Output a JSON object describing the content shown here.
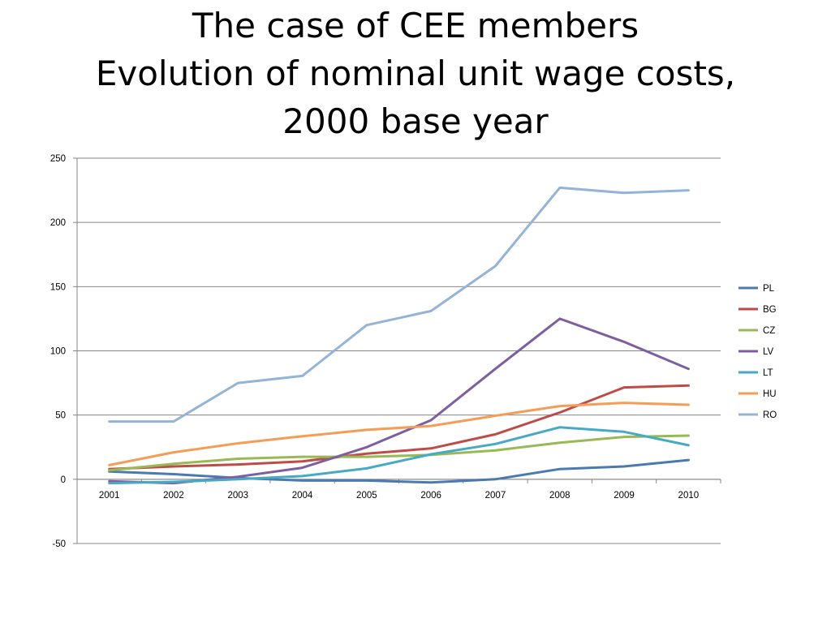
{
  "title": {
    "line1": "The case of CEE members",
    "line2": "Evolution of nominal unit wage costs,",
    "line3": "2000 base year"
  },
  "chart_data": {
    "type": "line",
    "title": "The case of CEE members Evolution of nominal unit wage costs, 2000 base year",
    "xlabel": "",
    "ylabel": "",
    "categories": [
      "2001",
      "2002",
      "2003",
      "2004",
      "2005",
      "2006",
      "2007",
      "2008",
      "2009",
      "2010"
    ],
    "ylim": [
      -50,
      250
    ],
    "yticks": [
      -50,
      0,
      50,
      100,
      150,
      200,
      250
    ],
    "grid": true,
    "legend_position": "right",
    "series": [
      {
        "name": "PL",
        "color": "#4a7ab0",
        "values": [
          6,
          4,
          1,
          -1,
          -1,
          -2.5,
          0,
          8,
          10,
          15
        ]
      },
      {
        "name": "BG",
        "color": "#be4b48",
        "values": [
          8,
          10,
          11.5,
          14,
          20,
          24,
          35,
          52,
          71.5,
          73
        ]
      },
      {
        "name": "CZ",
        "color": "#98b954",
        "values": [
          7,
          12,
          16,
          17.5,
          17.5,
          19,
          22.5,
          28.5,
          33,
          34
        ]
      },
      {
        "name": "LV",
        "color": "#7d5fa0",
        "values": [
          -1.5,
          -3,
          2,
          9,
          25,
          46,
          86,
          125,
          107,
          86
        ]
      },
      {
        "name": "LT",
        "color": "#46aac5",
        "values": [
          -3,
          -2,
          0,
          2.5,
          8.5,
          19.5,
          27.5,
          40.5,
          37,
          26.5
        ]
      },
      {
        "name": "HU",
        "color": "#f59d56",
        "values": [
          11,
          21,
          28,
          33.5,
          38.5,
          41.5,
          49.5,
          57,
          59.5,
          58
        ]
      },
      {
        "name": "RO",
        "color": "#95b3d7",
        "values": [
          45,
          45,
          75,
          80.5,
          120,
          131,
          166,
          227,
          223,
          225
        ]
      }
    ]
  }
}
